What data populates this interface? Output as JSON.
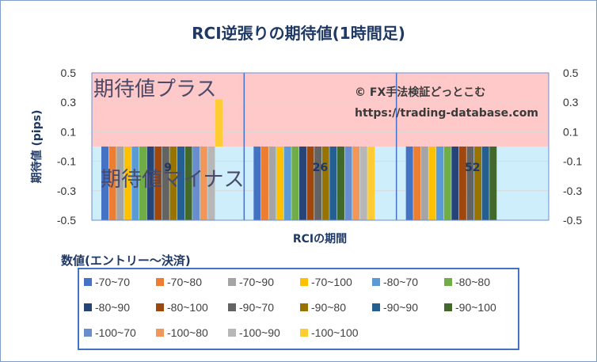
{
  "chart_data": {
    "type": "bar",
    "title": "RCI逆張りの期待値(1時間足)",
    "xlabel": "RCIの期間",
    "ylabel": "期待値 (pips)",
    "ylim": [
      -0.5,
      0.5
    ],
    "yticks": [
      "0.5",
      "0.3",
      "0.1",
      "-0.1",
      "-0.3",
      "-0.5"
    ],
    "categories": [
      "9",
      "26",
      "52"
    ],
    "legend_title": "数値(エントリー～決済)",
    "legend_position": "bottom",
    "annotations": {
      "plus_zone": "期待値プラス",
      "minus_zone": "期待値マイナス",
      "credit_line1": "© FX手法検証どっとこむ",
      "credit_line2": "https://trading-database.com"
    },
    "series": [
      {
        "name": "-70~70",
        "color": "#4472c4",
        "values": [
          -0.5,
          -0.5,
          -0.5
        ]
      },
      {
        "name": "-70~80",
        "color": "#ed7d31",
        "values": [
          -0.5,
          -0.5,
          -0.5
        ]
      },
      {
        "name": "-70~90",
        "color": "#a5a5a5",
        "values": [
          -0.5,
          -0.5,
          -0.5
        ]
      },
      {
        "name": "-70~100",
        "color": "#ffc000",
        "values": [
          -0.5,
          -0.5,
          -0.5
        ]
      },
      {
        "name": "-80~70",
        "color": "#5b9bd5",
        "values": [
          -0.5,
          -0.5,
          -0.5
        ]
      },
      {
        "name": "-80~80",
        "color": "#70ad47",
        "values": [
          -0.5,
          -0.5,
          -0.5
        ]
      },
      {
        "name": "-80~90",
        "color": "#264478",
        "values": [
          -0.5,
          -0.5,
          -0.5
        ]
      },
      {
        "name": "-80~100",
        "color": "#9e480e",
        "values": [
          -0.5,
          -0.5,
          -0.5
        ]
      },
      {
        "name": "-90~70",
        "color": "#636363",
        "values": [
          -0.5,
          -0.5,
          -0.5
        ]
      },
      {
        "name": "-90~80",
        "color": "#997300",
        "values": [
          -0.5,
          -0.5,
          -0.5
        ]
      },
      {
        "name": "-90~90",
        "color": "#255e91",
        "values": [
          -0.5,
          -0.5,
          -0.5
        ]
      },
      {
        "name": "-90~100",
        "color": "#43682b",
        "values": [
          -0.5,
          -0.5,
          -0.5
        ]
      },
      {
        "name": "-100~70",
        "color": "#698ed0",
        "values": [
          -0.5,
          -0.5,
          null
        ]
      },
      {
        "name": "-100~80",
        "color": "#f1975a",
        "values": [
          -0.5,
          -0.5,
          null
        ]
      },
      {
        "name": "-100~90",
        "color": "#b7b7b7",
        "values": [
          -0.5,
          -0.5,
          null
        ]
      },
      {
        "name": "-100~100",
        "color": "#ffcd33",
        "values": [
          0.32,
          -0.5,
          null
        ]
      }
    ]
  }
}
